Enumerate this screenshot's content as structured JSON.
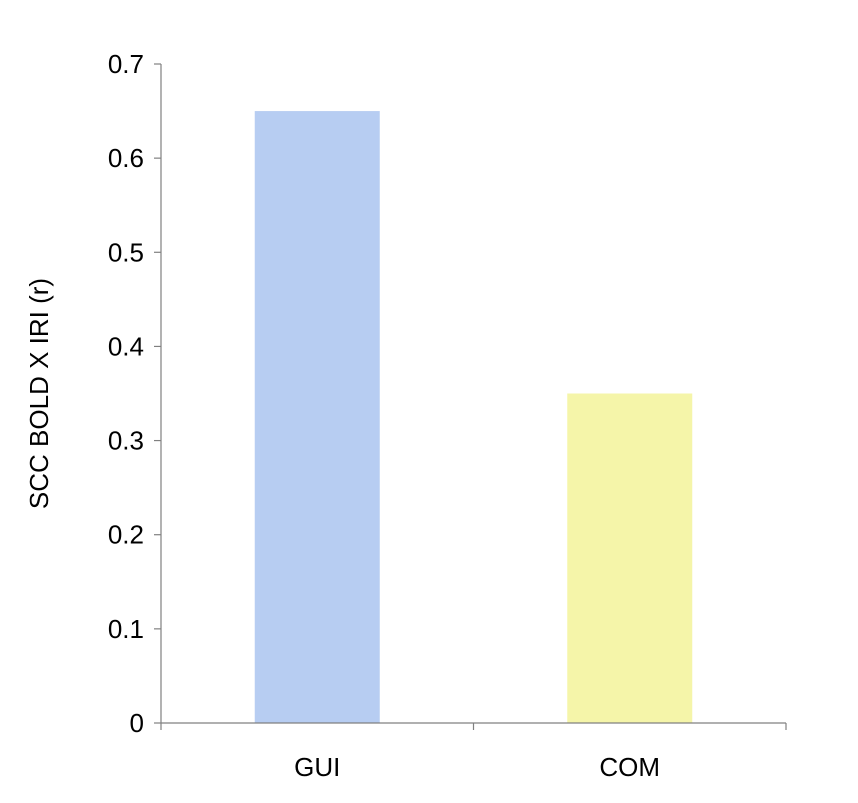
{
  "chart_data": {
    "type": "bar",
    "categories": [
      "GUI",
      "COM"
    ],
    "values": [
      0.65,
      0.35
    ],
    "title": "",
    "xlabel": "",
    "ylabel": "SCC BOLD X IRI (r)",
    "ylim": [
      0,
      0.7
    ],
    "yticks": [
      "0",
      "0.1",
      "0.2",
      "0.3",
      "0.4",
      "0.5",
      "0.6",
      "0.7"
    ],
    "bar_colors": [
      "#b7cdf2",
      "#f5f5a9"
    ],
    "grid": false,
    "legend": "none"
  }
}
